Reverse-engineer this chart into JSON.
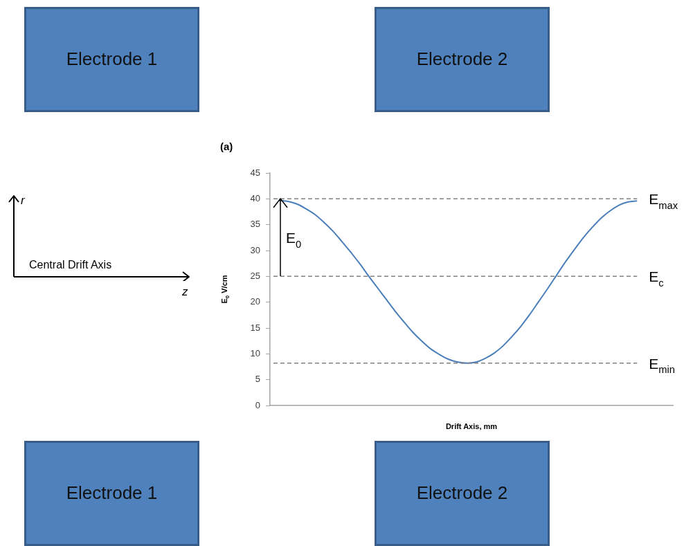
{
  "chart_data": {
    "type": "line",
    "title": "(a)",
    "xlabel": "Drift Axis, mm",
    "ylabel": "E$_{0}$ V/cm",
    "categories": [
      null,
      null,
      null,
      null,
      null,
      null,
      null,
      null,
      null,
      null,
      null,
      null,
      null,
      null,
      null,
      null,
      null,
      null,
      null,
      null,
      null,
      null,
      null,
      null,
      null,
      null,
      null,
      null,
      null,
      null,
      null,
      null,
      null,
      null,
      null,
      null,
      null,
      null,
      null,
      null,
      null,
      null,
      null,
      null,
      null,
      null
    ],
    "series": [
      {
        "color": "#4a7ebb",
        "values": [
          null,
          39.7,
          39.5,
          39.0,
          38.1,
          37.0,
          35.5,
          33.8,
          31.8,
          29.7,
          27.5,
          25.1,
          22.8,
          20.5,
          18.2,
          16.1,
          14.1,
          12.4,
          10.9,
          9.8,
          8.9,
          8.4,
          8.2,
          8.4,
          9.1,
          10.1,
          11.5,
          13.3,
          15.3,
          17.6,
          20.1,
          22.6,
          25.2,
          27.8,
          30.2,
          32.5,
          34.5,
          36.3,
          37.7,
          38.8,
          39.4,
          39.6,
          null,
          null,
          null,
          null
        ]
      }
    ],
    "ylim": [
      0,
      45
    ],
    "yticks": [
      0,
      5,
      10,
      15,
      20,
      25,
      30,
      35,
      40,
      45
    ],
    "grid": false,
    "legend": false,
    "marker": "none",
    "line_style": "solid",
    "tick_labels": "y",
    "ref_lines": [
      {
        "axis": "y",
        "value": 40,
        "label": "E$_{max}$",
        "color": "#808080",
        "line_style": "dashed"
      },
      {
        "axis": "y",
        "value": 25,
        "label": "E$_{c}$",
        "color": "#808080",
        "line_style": "dashed"
      },
      {
        "axis": "y",
        "value": 8.2,
        "label": "E$_{min}$",
        "color": "#808080",
        "line_style": "dashed"
      }
    ],
    "annotations": [
      "E$_{0}$",
      "Electrode 1",
      "Electrode 2",
      "Electrode 1",
      "Electrode 2",
      "r",
      "Central Drift Axis",
      "z"
    ]
  }
}
